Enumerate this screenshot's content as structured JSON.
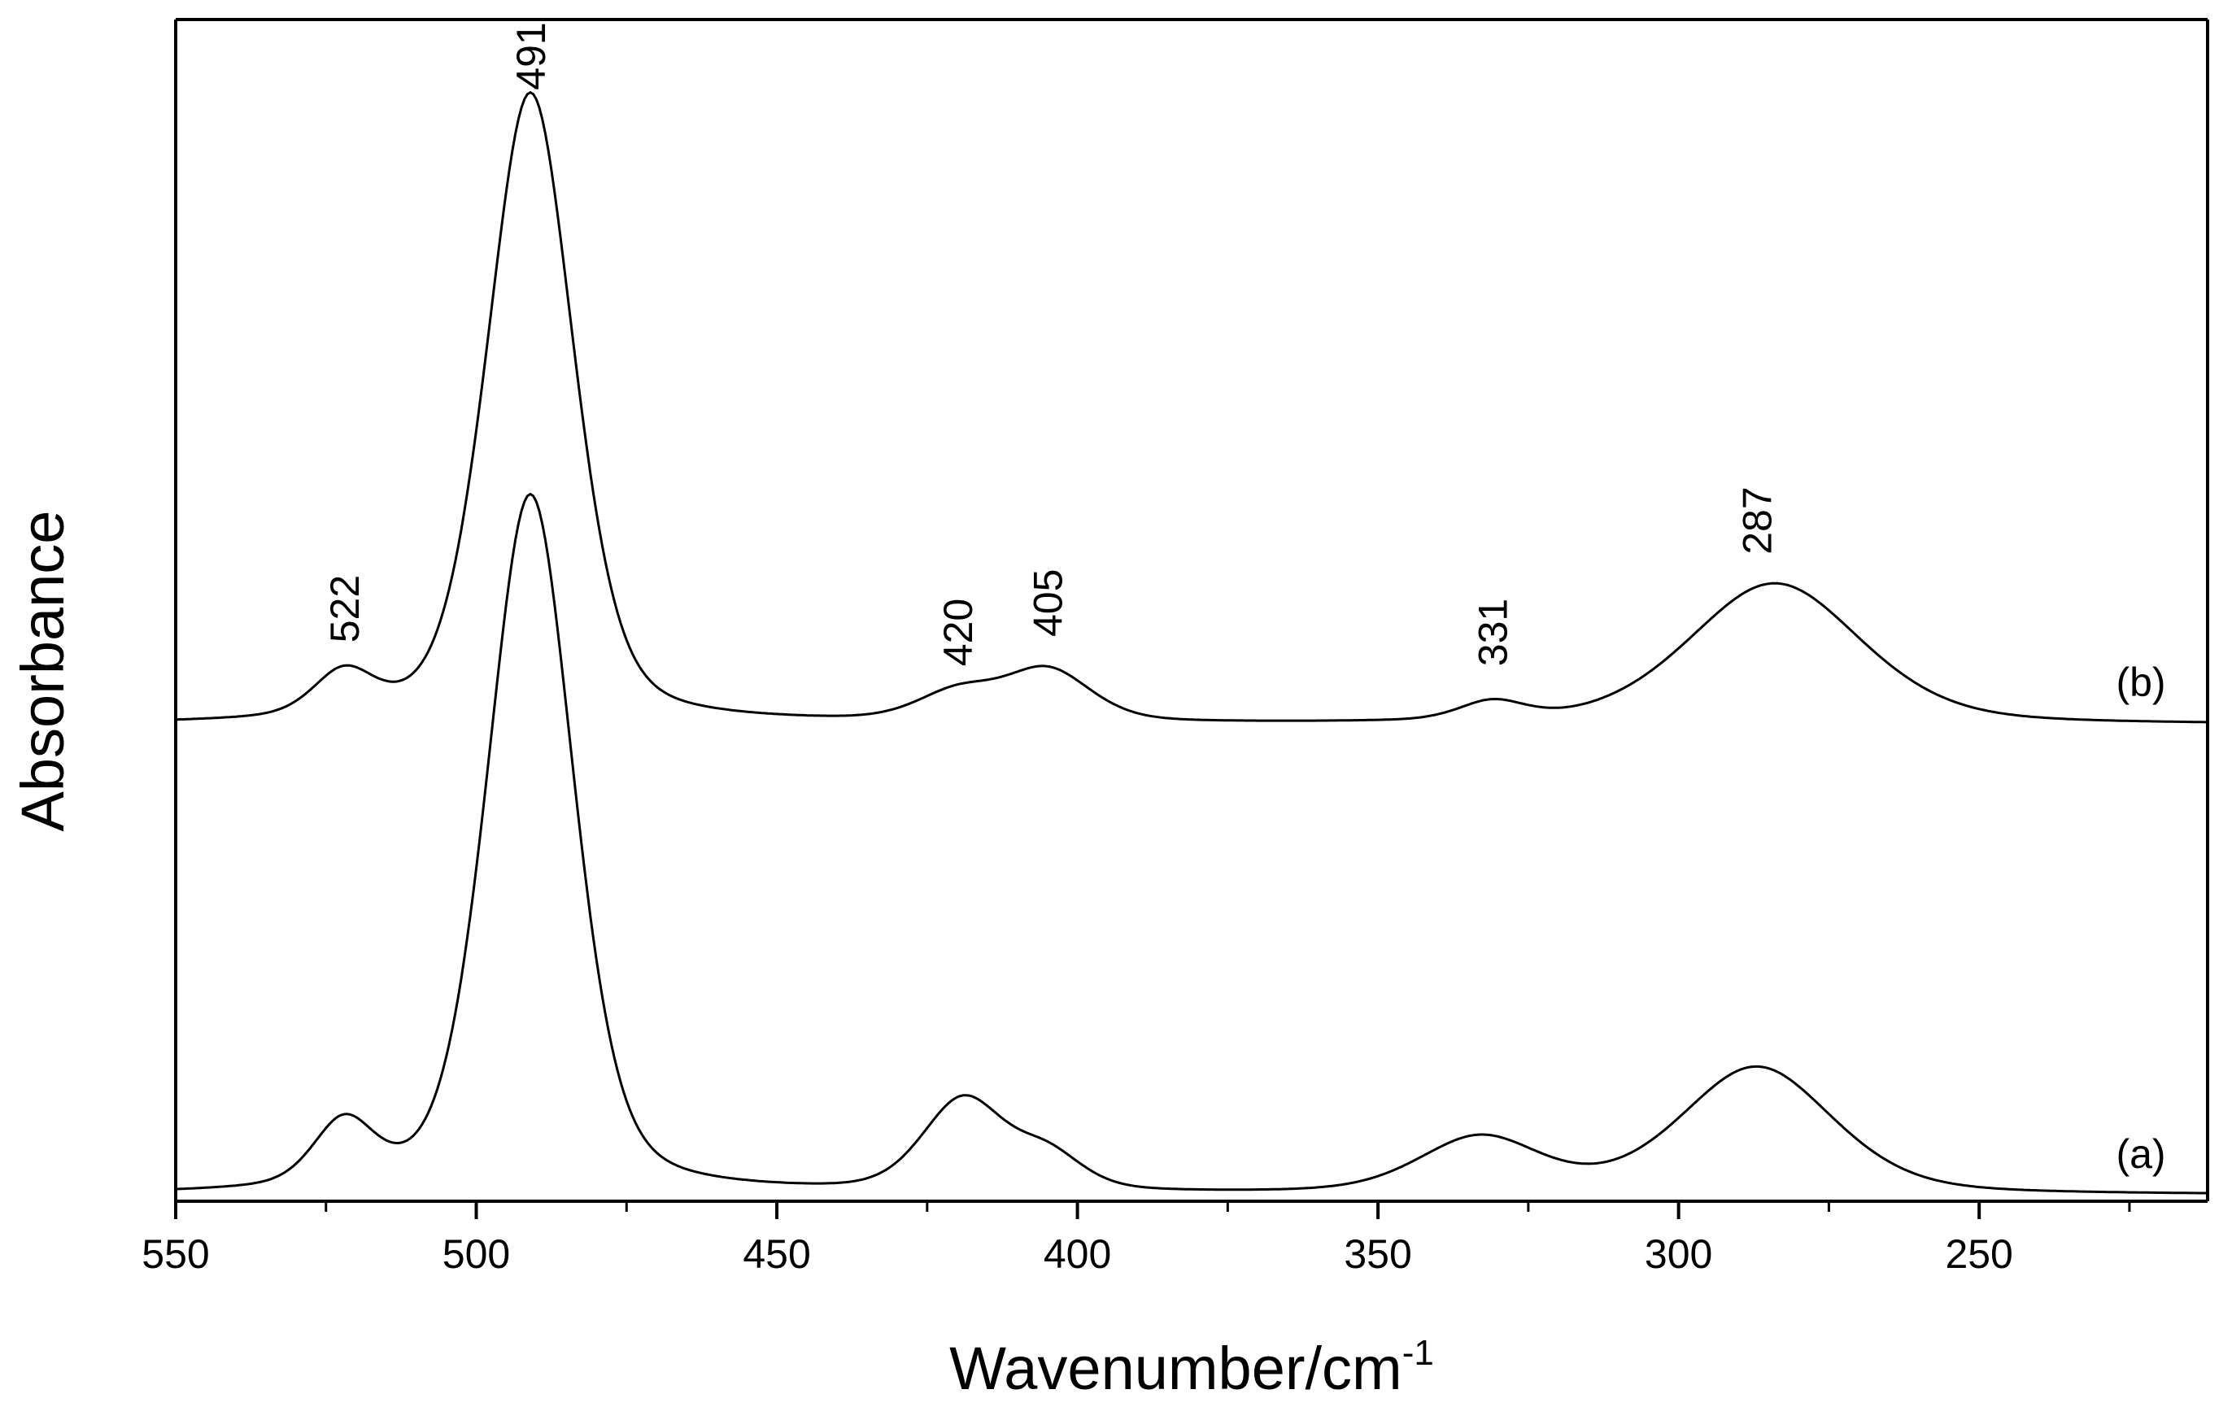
{
  "chart_data": {
    "type": "line",
    "title": "",
    "xlabel": "Wavenumber/cm",
    "xlabel_superscript": "-1",
    "ylabel": "Absorbance",
    "xlim": [
      550,
      212
    ],
    "x_reversed": true,
    "y_ticks_shown": false,
    "grid": false,
    "x_major_ticks": [
      550,
      500,
      450,
      400,
      350,
      300,
      250
    ],
    "x_tick_labels": [
      "550",
      "500",
      "450",
      "400",
      "350",
      "300",
      "250"
    ],
    "x_minor_ticks": [
      525,
      475,
      425,
      375,
      325,
      275,
      225
    ],
    "line_color": "#000000",
    "series": [
      {
        "label": "(a)",
        "baseline": 0.0,
        "peaks": [
          {
            "center": 522,
            "height": 0.054,
            "fwhm": 12
          },
          {
            "center": 491,
            "height": 0.595,
            "fwhm": 17
          },
          {
            "center": 419,
            "height": 0.078,
            "fwhm": 16
          },
          {
            "center": 405,
            "height": 0.03,
            "fwhm": 14
          },
          {
            "center": 333,
            "height": 0.047,
            "fwhm": 24
          },
          {
            "center": 287,
            "height": 0.108,
            "fwhm": 30
          }
        ]
      },
      {
        "label": "(b)",
        "baseline": 0.4,
        "peaks": [
          {
            "center": 522,
            "height": 0.037,
            "fwhm": 12
          },
          {
            "center": 491,
            "height": 0.537,
            "fwhm": 17
          },
          {
            "center": 420,
            "height": 0.024,
            "fwhm": 16
          },
          {
            "center": 405,
            "height": 0.044,
            "fwhm": 17
          },
          {
            "center": 331,
            "height": 0.016,
            "fwhm": 13
          },
          {
            "center": 284,
            "height": 0.12,
            "fwhm": 34
          }
        ]
      }
    ],
    "annotations": [
      {
        "text": "491",
        "x": 491,
        "y": 0.94
      },
      {
        "text": "522",
        "x": 522,
        "y": 0.47
      },
      {
        "text": "420",
        "x": 420,
        "y": 0.45
      },
      {
        "text": "405",
        "x": 405,
        "y": 0.475
      },
      {
        "text": "331",
        "x": 331,
        "y": 0.45
      },
      {
        "text": "287",
        "x": 287,
        "y": 0.545
      }
    ]
  }
}
